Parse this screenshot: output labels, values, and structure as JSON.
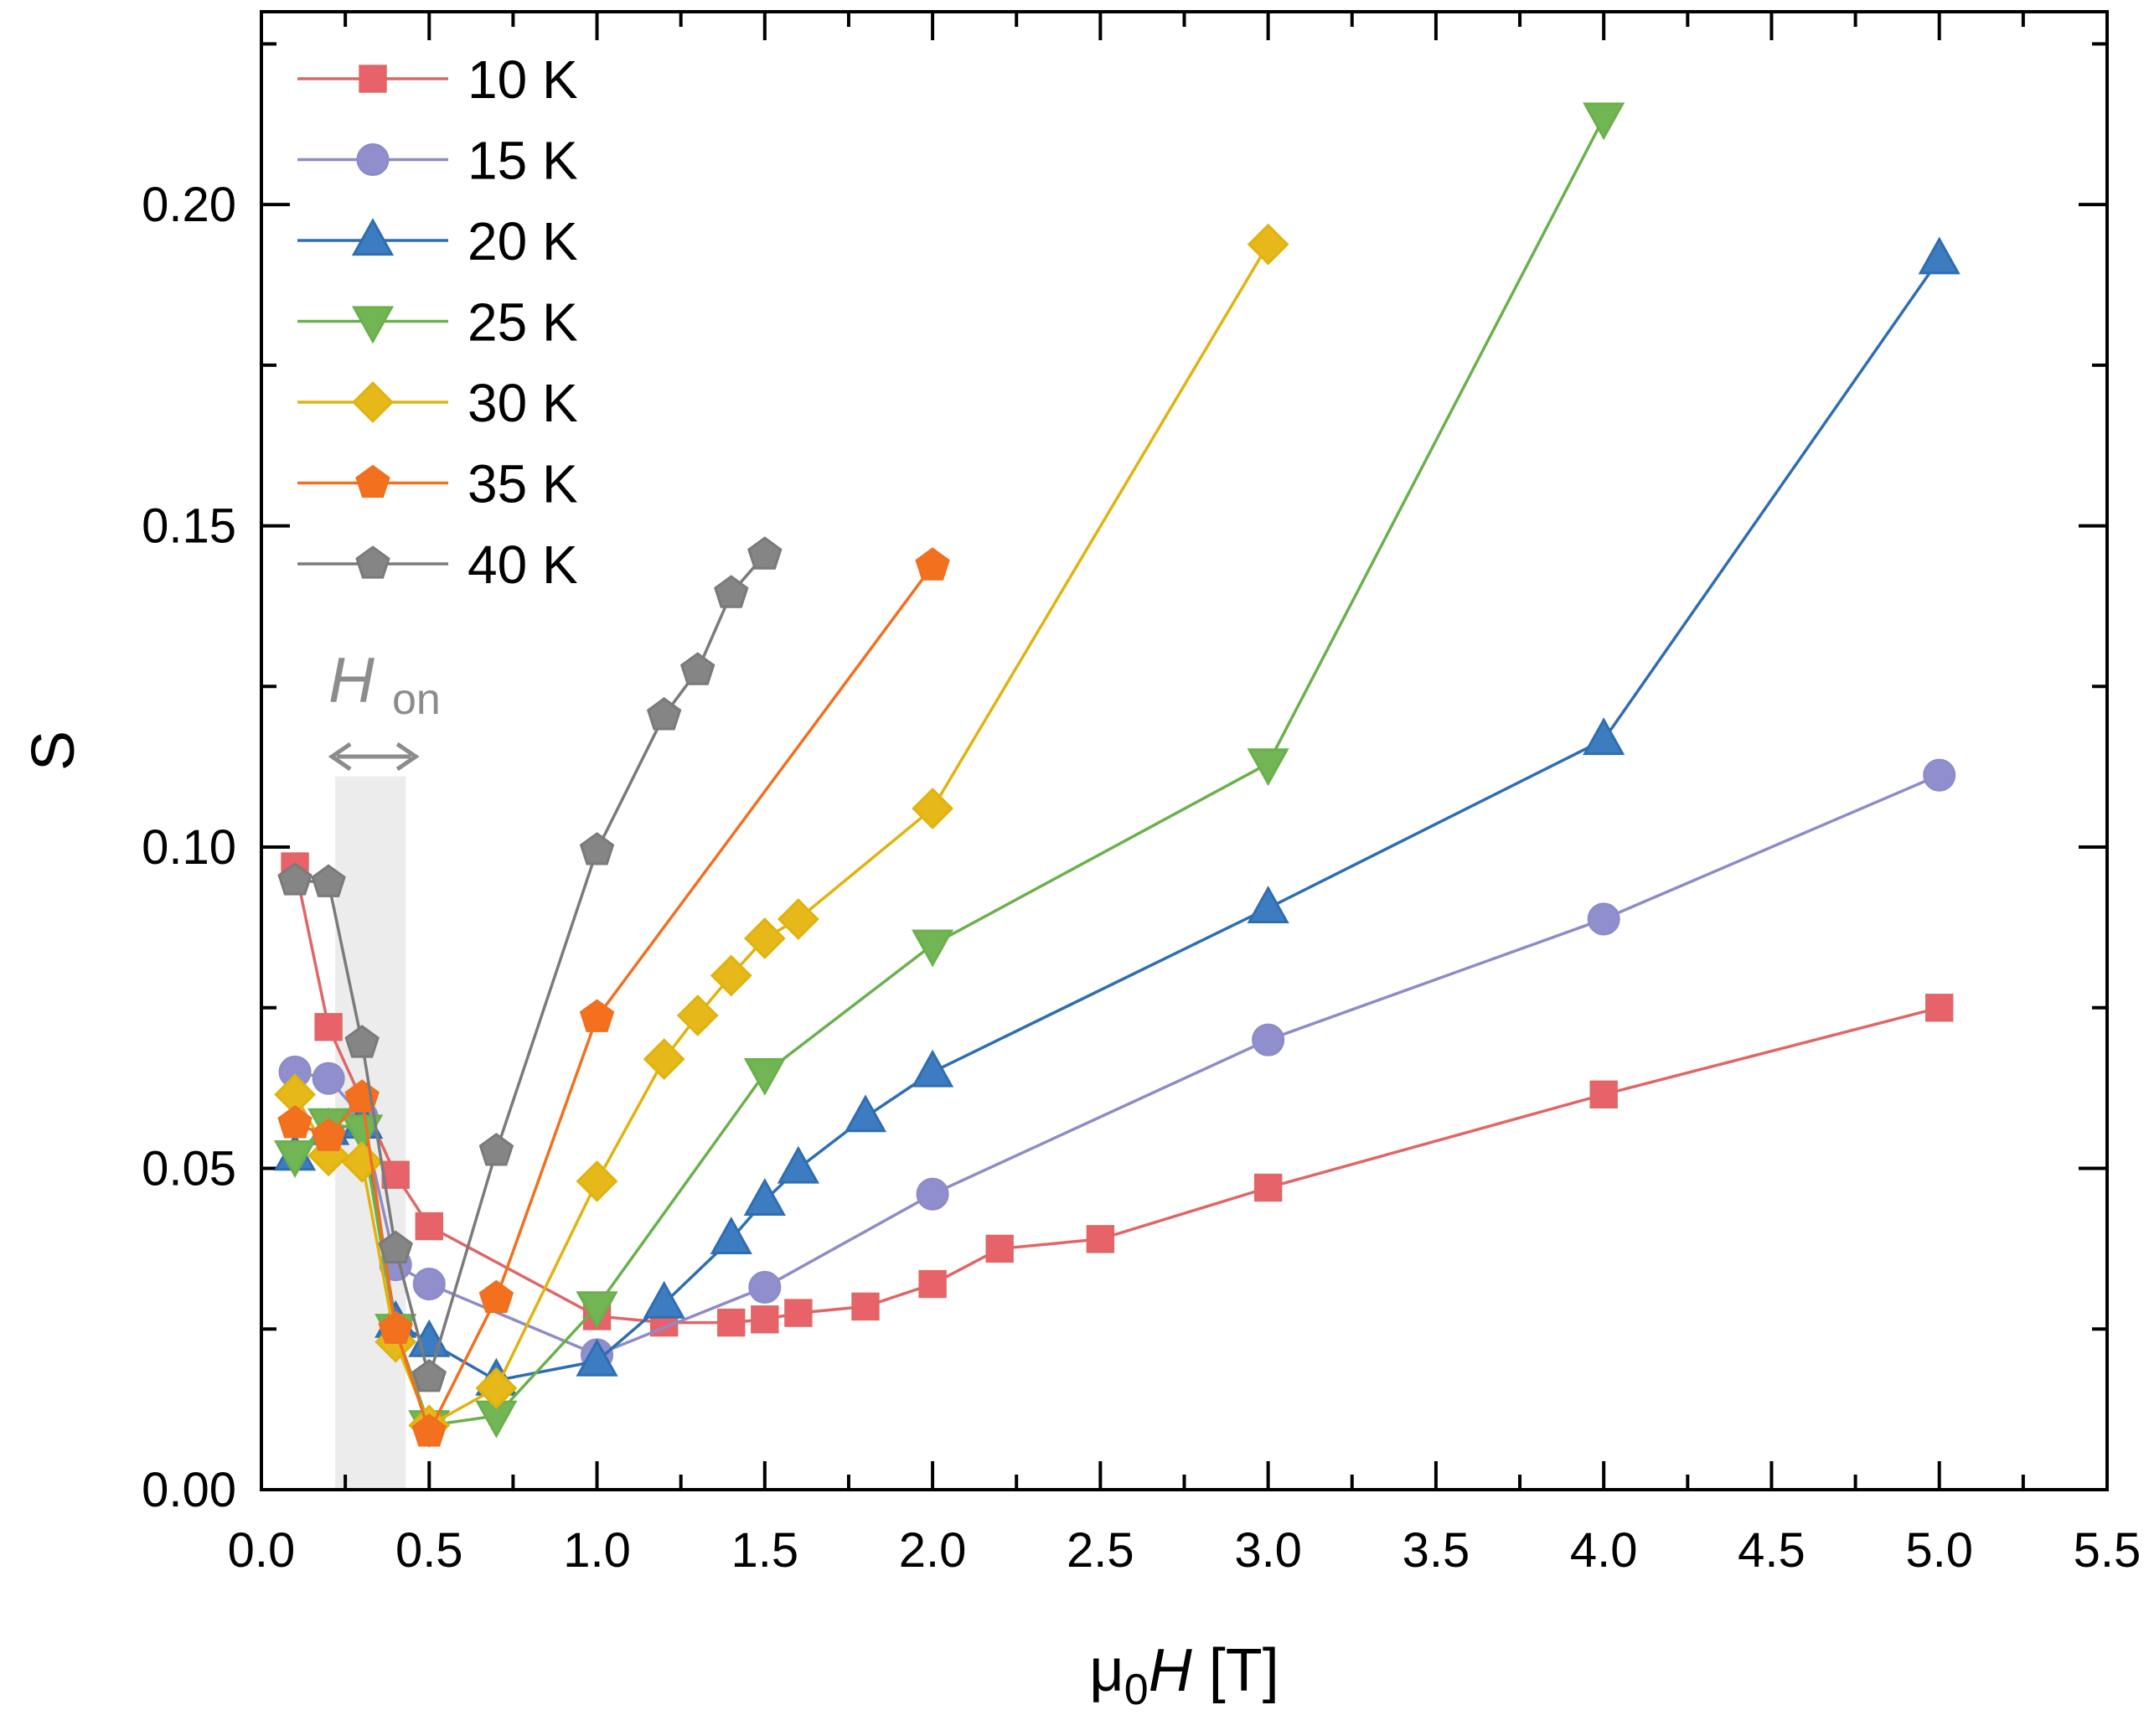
{
  "chart_data": {
    "type": "line",
    "title": "",
    "xlabel": {
      "prefix": "μ",
      "sub": "0",
      "italic": "H",
      "suffix": " [T]"
    },
    "ylabel": "S",
    "xlim": [
      0,
      5.5
    ],
    "ylim": [
      0,
      0.23
    ],
    "x_ticks": [
      0.0,
      0.5,
      1.0,
      1.5,
      2.0,
      2.5,
      3.0,
      3.5,
      4.0,
      4.5,
      5.0,
      5.5
    ],
    "x_tick_labels": [
      "0.0",
      "0.5",
      "1.0",
      "1.5",
      "2.0",
      "2.5",
      "3.0",
      "3.5",
      "4.0",
      "4.5",
      "5.0",
      "5.5"
    ],
    "y_ticks": [
      0.0,
      0.05,
      0.1,
      0.15,
      0.2
    ],
    "y_tick_labels": [
      "0.00",
      "0.05",
      "0.10",
      "0.15",
      "0.20"
    ],
    "x_minor_ticks": [
      0.25,
      0.75,
      1.25,
      1.75,
      2.25,
      2.75,
      3.25,
      3.75,
      4.25,
      4.75,
      5.25
    ],
    "y_minor_ticks": [
      0.025,
      0.075,
      0.125,
      0.175,
      0.225
    ],
    "legend_position": "top-left",
    "annotation": {
      "text_italic": "H",
      "text_sub": "on",
      "shaded_x_range": [
        0.22,
        0.43
      ],
      "shaded_y_max": 0.111,
      "color": "#8c8c8c",
      "shade_color": "#ececec"
    },
    "series": [
      {
        "name": "10 K",
        "marker": "square",
        "color": "#e06666",
        "fill": "#e8626a",
        "points": [
          [
            0.1,
            0.097
          ],
          [
            0.2,
            0.072
          ],
          [
            0.4,
            0.049
          ],
          [
            0.5,
            0.041
          ],
          [
            1.0,
            0.027
          ],
          [
            1.2,
            0.026
          ],
          [
            1.4,
            0.026
          ],
          [
            1.5,
            0.0265
          ],
          [
            1.6,
            0.0275
          ],
          [
            1.8,
            0.0285
          ],
          [
            2.0,
            0.032
          ],
          [
            2.2,
            0.0375
          ],
          [
            2.5,
            0.039
          ],
          [
            3.0,
            0.047
          ],
          [
            4.0,
            0.0615
          ],
          [
            5.0,
            0.075
          ]
        ]
      },
      {
        "name": "15 K",
        "marker": "circle",
        "color": "#8e8cc8",
        "fill": "#8f8fce",
        "points": [
          [
            0.1,
            0.065
          ],
          [
            0.2,
            0.064
          ],
          [
            0.3,
            0.058
          ],
          [
            0.4,
            0.035
          ],
          [
            0.5,
            0.032
          ],
          [
            1.0,
            0.021
          ],
          [
            1.5,
            0.0315
          ],
          [
            2.0,
            0.046
          ],
          [
            3.0,
            0.07
          ],
          [
            4.0,
            0.0888
          ],
          [
            5.0,
            0.1112
          ]
        ]
      },
      {
        "name": "20 K",
        "marker": "triangle-up",
        "color": "#2e6eb0",
        "fill": "#3e7cc2",
        "points": [
          [
            0.1,
            0.052
          ],
          [
            0.2,
            0.056
          ],
          [
            0.3,
            0.057
          ],
          [
            0.4,
            0.026
          ],
          [
            0.5,
            0.023
          ],
          [
            0.7,
            0.017
          ],
          [
            1.0,
            0.02
          ],
          [
            1.2,
            0.029
          ],
          [
            1.4,
            0.039
          ],
          [
            1.5,
            0.045
          ],
          [
            1.6,
            0.05
          ],
          [
            1.8,
            0.058
          ],
          [
            2.0,
            0.065
          ],
          [
            3.0,
            0.0905
          ],
          [
            4.0,
            0.1167
          ],
          [
            5.0,
            0.1915
          ]
        ]
      },
      {
        "name": "25 K",
        "marker": "triangle-down",
        "color": "#6ab04c",
        "fill": "#72b555",
        "points": [
          [
            0.1,
            0.052
          ],
          [
            0.2,
            0.057
          ],
          [
            0.3,
            0.056
          ],
          [
            0.4,
            0.025
          ],
          [
            0.5,
            0.01
          ],
          [
            0.7,
            0.0115
          ],
          [
            1.0,
            0.0285
          ],
          [
            1.5,
            0.0648
          ],
          [
            2.0,
            0.0848
          ],
          [
            3.0,
            0.113
          ],
          [
            4.0,
            0.2135
          ]
        ]
      },
      {
        "name": "30 K",
        "marker": "diamond",
        "color": "#e0b30e",
        "fill": "#e6b81a",
        "points": [
          [
            0.1,
            0.0615
          ],
          [
            0.2,
            0.052
          ],
          [
            0.3,
            0.051
          ],
          [
            0.4,
            0.023
          ],
          [
            0.5,
            0.01
          ],
          [
            0.7,
            0.0158
          ],
          [
            1.0,
            0.048
          ],
          [
            1.2,
            0.067
          ],
          [
            1.3,
            0.0738
          ],
          [
            1.4,
            0.08
          ],
          [
            1.5,
            0.0858
          ],
          [
            1.6,
            0.0888
          ],
          [
            2.0,
            0.106
          ],
          [
            3.0,
            0.1938
          ]
        ]
      },
      {
        "name": "35 K",
        "marker": "pentagon",
        "color": "#f07020",
        "fill": "#f2701e",
        "points": [
          [
            0.1,
            0.057
          ],
          [
            0.2,
            0.055
          ],
          [
            0.3,
            0.061
          ],
          [
            0.4,
            0.025
          ],
          [
            0.5,
            0.009
          ],
          [
            0.7,
            0.0298
          ],
          [
            1.0,
            0.0735
          ],
          [
            2.0,
            0.1438
          ]
        ]
      },
      {
        "name": "40 K",
        "marker": "pentagon",
        "color": "#7a7a7a",
        "fill": "#858585",
        "points": [
          [
            0.1,
            0.0948
          ],
          [
            0.2,
            0.0945
          ],
          [
            0.3,
            0.0695
          ],
          [
            0.4,
            0.0375
          ],
          [
            0.5,
            0.0175
          ],
          [
            0.7,
            0.0527
          ],
          [
            1.0,
            0.0995
          ],
          [
            1.2,
            0.1205
          ],
          [
            1.3,
            0.1275
          ],
          [
            1.4,
            0.1395
          ],
          [
            1.5,
            0.1455
          ]
        ]
      }
    ]
  }
}
